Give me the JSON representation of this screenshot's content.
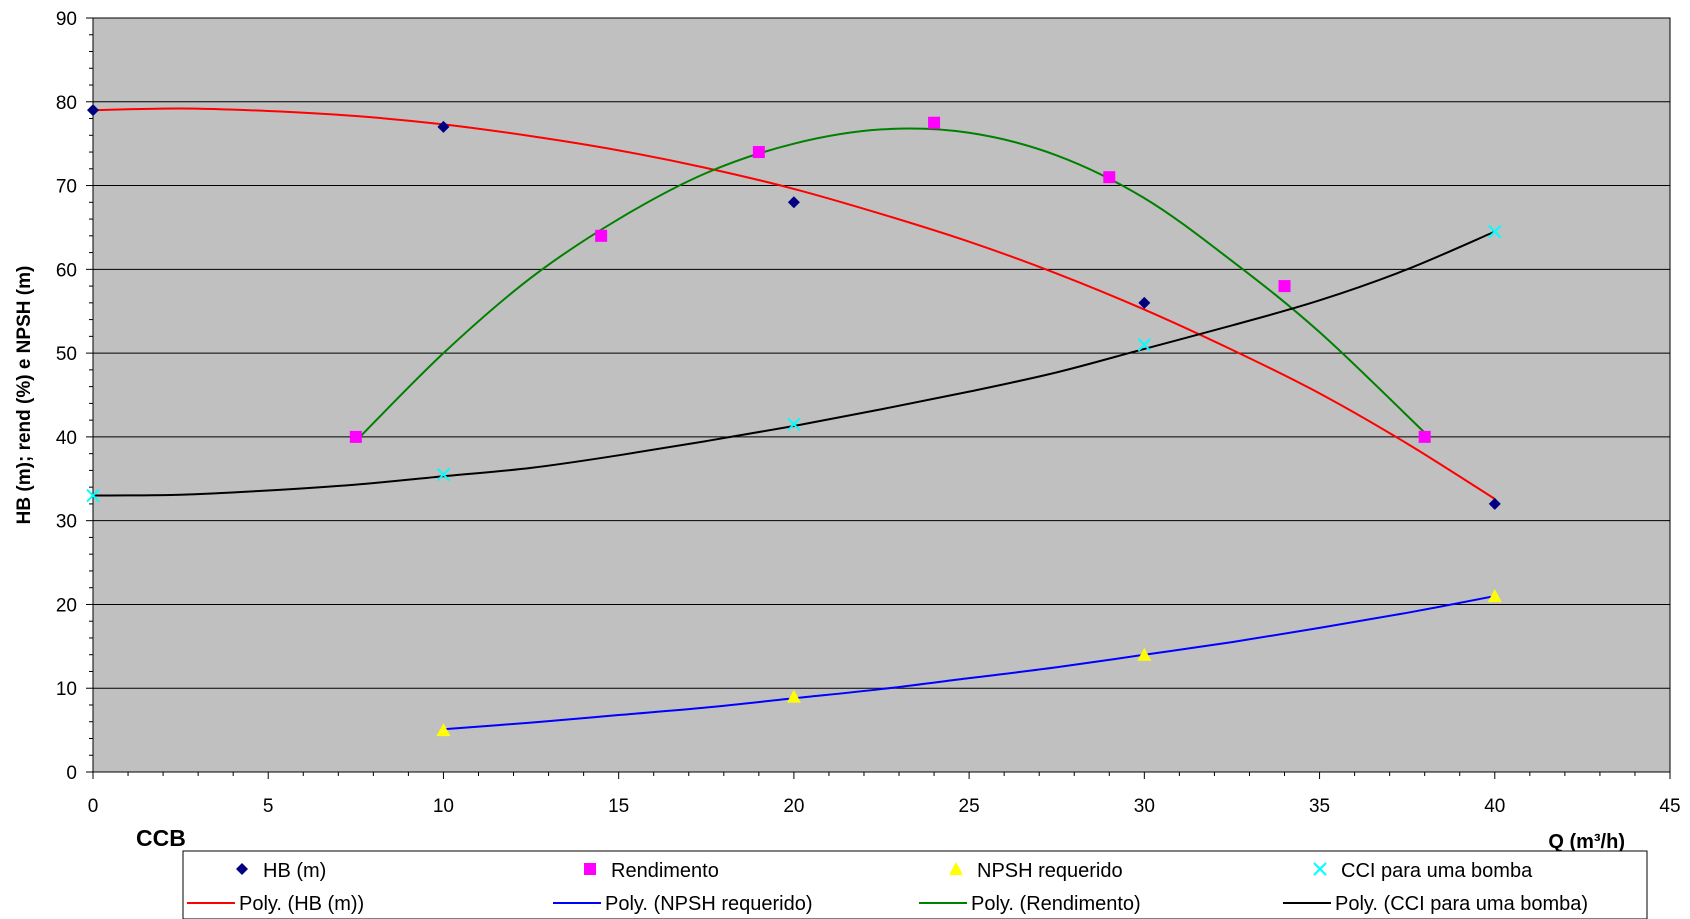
{
  "chart_data": {
    "type": "scatter",
    "title": "",
    "corner_label": "CCB",
    "xlabel": "Q (m³/h)",
    "ylabel": "HB (m); rend (%) e NPSH (m)",
    "xlim": [
      0,
      45
    ],
    "ylim": [
      0,
      90
    ],
    "xticks": [
      0,
      5,
      10,
      15,
      20,
      25,
      30,
      35,
      40,
      45
    ],
    "yticks": [
      0,
      10,
      20,
      30,
      40,
      50,
      60,
      70,
      80,
      90
    ],
    "grid": "horizontal",
    "legend_position": "bottom",
    "plot_background": "#C0C0C0",
    "series": [
      {
        "name": "HB (m)",
        "marker": "diamond",
        "color": "#000080",
        "x": [
          0,
          10,
          20,
          30,
          40
        ],
        "y": [
          79,
          77,
          68,
          56,
          32
        ]
      },
      {
        "name": "Rendimento",
        "marker": "square",
        "color": "#FF00FF",
        "x": [
          7.5,
          14.5,
          19,
          24,
          29,
          34,
          38
        ],
        "y": [
          40,
          64,
          74,
          77.5,
          71,
          58,
          40
        ]
      },
      {
        "name": "NPSH requerido",
        "marker": "triangle",
        "color": "#FFFF00",
        "x": [
          10,
          20,
          30,
          40
        ],
        "y": [
          5,
          9,
          14,
          21
        ]
      },
      {
        "name": "CCI para uma bomba",
        "marker": "x",
        "color": "#00FFFF",
        "x": [
          0,
          10,
          20,
          30,
          40
        ],
        "y": [
          33,
          35.5,
          41.5,
          51,
          64.5
        ]
      }
    ],
    "trendlines": [
      {
        "name": "Poly. (HB (m))",
        "color": "#FF0000",
        "x": [
          0,
          2.5,
          5,
          7.5,
          10,
          12.5,
          15,
          17.5,
          20,
          22.5,
          25,
          27.5,
          30,
          32.5,
          35,
          37.5,
          40
        ],
        "y": [
          79,
          79.2,
          78.9,
          78.3,
          77.3,
          75.9,
          74.2,
          72.1,
          69.6,
          66.6,
          63.3,
          59.5,
          55.2,
          50.4,
          45.2,
          39.2,
          32.6
        ]
      },
      {
        "name": "Poly. (NPSH requerido)",
        "color": "#0000FF",
        "x": [
          10,
          12.5,
          15,
          17.5,
          20,
          22.5,
          25,
          27.5,
          30,
          32.5,
          35,
          37.5,
          40
        ],
        "y": [
          5.1,
          5.9,
          6.8,
          7.7,
          8.8,
          9.9,
          11.2,
          12.5,
          14.0,
          15.5,
          17.2,
          19.0,
          21.0
        ]
      },
      {
        "name": "Poly. (Rendimento)",
        "color": "#008000",
        "x": [
          7.5,
          10,
          12.5,
          15,
          17.5,
          20,
          22.5,
          25,
          27.5,
          30,
          32.5,
          35,
          38
        ],
        "y": [
          39.5,
          50.0,
          59.0,
          66.0,
          71.5,
          75.0,
          76.7,
          76.3,
          73.6,
          68.5,
          61.0,
          52.5,
          40.5
        ]
      },
      {
        "name": "Poly. (CCI para uma bomba)",
        "color": "#000000",
        "x": [
          0,
          2.5,
          5,
          7.5,
          10,
          12.5,
          15,
          17.5,
          20,
          22.5,
          25,
          27.5,
          30,
          32.5,
          35,
          37.5,
          40
        ],
        "y": [
          33.0,
          33.1,
          33.6,
          34.3,
          35.3,
          36.3,
          37.8,
          39.5,
          41.3,
          43.3,
          45.4,
          47.7,
          50.5,
          53.3,
          56.3,
          60.0,
          64.5
        ]
      }
    ]
  }
}
